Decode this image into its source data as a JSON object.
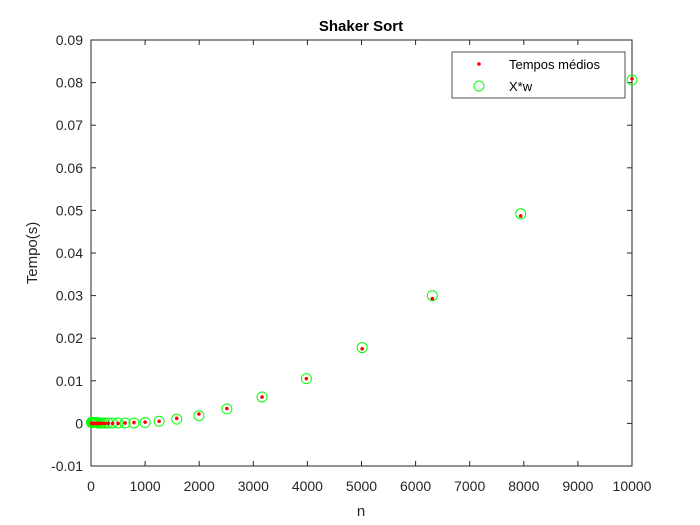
{
  "chart_data": {
    "type": "scatter",
    "title": "Shaker Sort",
    "xlabel": "n",
    "ylabel": "Tempo(s)",
    "xlim": [
      0,
      10000
    ],
    "ylim": [
      -0.01,
      0.09
    ],
    "xticks": [
      0,
      1000,
      2000,
      3000,
      4000,
      5000,
      6000,
      7000,
      8000,
      9000,
      10000
    ],
    "xtick_labels": [
      "0",
      "1000",
      "2000",
      "3000",
      "4000",
      "5000",
      "6000",
      "7000",
      "8000",
      "9000",
      "10000"
    ],
    "yticks": [
      -0.01,
      0,
      0.01,
      0.02,
      0.03,
      0.04,
      0.05,
      0.06,
      0.07,
      0.08,
      0.09
    ],
    "ytick_labels": [
      "-0.01",
      "0",
      "0.01",
      "0.02",
      "0.03",
      "0.04",
      "0.05",
      "0.06",
      "0.07",
      "0.08",
      "0.09"
    ],
    "grid": false,
    "legend_position": "top-right",
    "series": [
      {
        "name": "Tempos médios",
        "marker": "dot",
        "color": "#ff0000",
        "x": [
          10,
          13,
          16,
          20,
          25,
          32,
          40,
          50,
          63,
          79,
          100,
          126,
          158,
          200,
          251,
          316,
          398,
          501,
          631,
          794,
          1000,
          1259,
          1585,
          1995,
          2512,
          3162,
          3981,
          5012,
          6310,
          7943,
          10000
        ],
        "y": [
          0,
          0,
          0,
          0,
          0,
          0,
          0,
          0,
          0,
          0,
          0,
          0,
          0,
          0,
          0,
          0,
          0,
          0,
          0.0001,
          0.0002,
          0.0003,
          0.0005,
          0.0012,
          0.0022,
          0.0035,
          0.0062,
          0.0105,
          0.0175,
          0.0293,
          0.0487,
          0.0809
        ]
      },
      {
        "name": "X*w",
        "marker": "circle",
        "color": "#00ff00",
        "x": [
          10,
          13,
          16,
          20,
          25,
          32,
          40,
          50,
          63,
          79,
          100,
          126,
          158,
          200,
          251,
          316,
          398,
          501,
          631,
          794,
          1000,
          1259,
          1585,
          1995,
          2512,
          3162,
          3981,
          5012,
          6310,
          7943,
          10000
        ],
        "y": [
          0.0002,
          0.0002,
          0.0002,
          0.0002,
          0.0002,
          0.0002,
          0.0002,
          0.0002,
          0.0002,
          0.0002,
          0.0002,
          0.0001,
          0.0001,
          0.0001,
          0.0001,
          0.0001,
          0.0001,
          0.0001,
          0.0001,
          0.0001,
          0.0002,
          0.0005,
          0.001,
          0.0018,
          0.0034,
          0.0062,
          0.0105,
          0.0178,
          0.03,
          0.0492,
          0.0806
        ]
      }
    ]
  }
}
